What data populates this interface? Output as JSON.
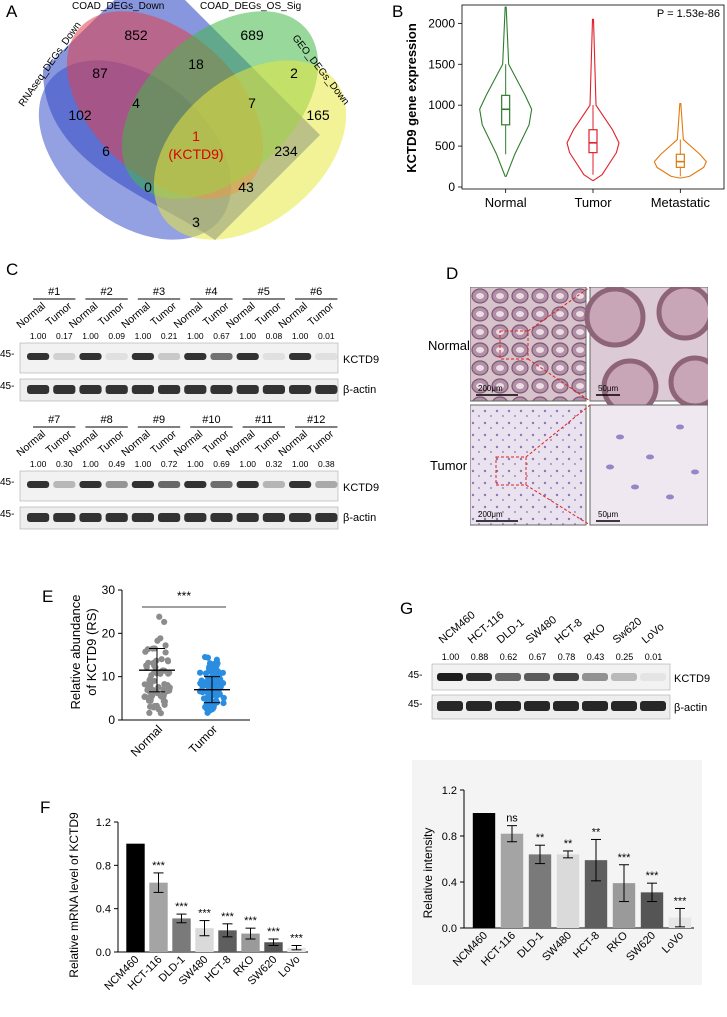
{
  "panels": {
    "A": "A",
    "B": "B",
    "C": "C",
    "D": "D",
    "E": "E",
    "F": "F",
    "G": "G"
  },
  "venn": {
    "set_labels": [
      "RNAseq_DEGs_Down",
      "COAD_DEGs_Down",
      "COAD_DEGs_OS_Sig",
      "GEO_DEGs_Down"
    ],
    "colors": [
      "#3a52c8",
      "#e04048",
      "#44b848",
      "#e8e840"
    ],
    "regions": {
      "only_rnaseq": "102",
      "only_coad": "852",
      "only_os": "689",
      "only_geo": "165",
      "rnaseq_coad": "87",
      "coad_os": "18",
      "os_geo": "2",
      "rnaseq_coad_os": "4",
      "coad_os_geo": "7",
      "rnaseq_os": "6",
      "coad_geo": "234",
      "all_four_count": "1",
      "all_four_gene": "(KCTD9)",
      "rnaseq_os_geo": "0",
      "rnaseq_coad_geo": "43",
      "rnaseq_geo": "3"
    }
  },
  "chart_data": [
    {
      "type": "violin",
      "panel": "B",
      "categories": [
        "Normal",
        "Tumor",
        "Metastatic"
      ],
      "colors": [
        "#2e7d2e",
        "#e0202a",
        "#e07a10"
      ],
      "ylabel": "KCTD9 gene expression",
      "ylim": [
        0,
        2200
      ],
      "yticks": [
        0,
        500,
        1000,
        1500,
        2000
      ],
      "annotation": "P = 1.53e-86",
      "summaries": [
        {
          "min": 130,
          "q1": 760,
          "median": 950,
          "q3": 1120,
          "max": 2200,
          "upper_whisker": 1500,
          "lower_whisker": 400
        },
        {
          "min": 80,
          "q1": 420,
          "median": 540,
          "q3": 700,
          "max": 2050,
          "upper_whisker": 1000,
          "lower_whisker": 150
        },
        {
          "min": 110,
          "q1": 240,
          "median": 310,
          "q3": 400,
          "max": 1020,
          "upper_whisker": 580,
          "lower_whisker": 130
        }
      ]
    },
    {
      "type": "scatter",
      "panel": "E",
      "categories": [
        "Normal",
        "Tumor"
      ],
      "ylabel_lines": [
        "Relative abundance",
        "of KCTD9 (RS)"
      ],
      "ylim": [
        0,
        30
      ],
      "yticks": [
        0,
        10,
        20,
        30
      ],
      "significance": "***",
      "colors": [
        "#8c8c8c",
        "#2a8de0"
      ]
    },
    {
      "type": "bar",
      "panel": "F",
      "categories": [
        "NCM460",
        "HCT-116",
        "DLD-1",
        "SW480",
        "HCT-8",
        "RKO",
        "SW620",
        "LoVo"
      ],
      "values": [
        1.0,
        0.64,
        0.31,
        0.22,
        0.2,
        0.17,
        0.09,
        0.04
      ],
      "errors": [
        0.0,
        0.09,
        0.04,
        0.07,
        0.06,
        0.05,
        0.03,
        0.02
      ],
      "significance": [
        "",
        "***",
        "***",
        "***",
        "***",
        "***",
        "***",
        "***"
      ],
      "ylabel": "Relative mRNA level of KCTD9",
      "ylim": [
        0,
        1.2
      ],
      "yticks": [
        "0.0",
        "0.4",
        "0.8",
        "1.2"
      ]
    },
    {
      "type": "bar",
      "panel": "G",
      "categories": [
        "NCM460",
        "HCT-116",
        "DLD-1",
        "SW480",
        "HCT-8",
        "RKO",
        "SW620",
        "LoVo"
      ],
      "values": [
        1.0,
        0.82,
        0.64,
        0.64,
        0.59,
        0.39,
        0.31,
        0.09
      ],
      "errors": [
        0.0,
        0.07,
        0.08,
        0.03,
        0.18,
        0.16,
        0.08,
        0.08
      ],
      "significance": [
        "",
        "ns",
        "**",
        "**",
        "**",
        "***",
        "***",
        "***"
      ],
      "ylabel": "Relative intensity",
      "ylim": [
        0,
        1.2
      ],
      "yticks": [
        "0.0",
        "0.4",
        "0.8",
        "1.2"
      ]
    }
  ],
  "blot_c": {
    "top": {
      "groups": [
        "#1",
        "#2",
        "#3",
        "#4",
        "#5",
        "#6"
      ],
      "values": [
        "1.00",
        "0.17",
        "1.00",
        "0.09",
        "1.00",
        "0.21",
        "1.00",
        "0.67",
        "1.00",
        "0.08",
        "1.00",
        "0.01"
      ]
    },
    "bottom": {
      "groups": [
        "#7",
        "#8",
        "#9",
        "#10",
        "#11",
        "#12"
      ],
      "values": [
        "1.00",
        "0.30",
        "1.00",
        "0.49",
        "1.00",
        "0.72",
        "1.00",
        "0.69",
        "1.00",
        "0.32",
        "1.00",
        "0.38"
      ]
    },
    "lane_labels": [
      "Normal",
      "Tumor"
    ],
    "marker": "45-",
    "band_kctd9": "KCTD9",
    "band_actin": "β-actin"
  },
  "blot_g": {
    "lanes": [
      "NCM460",
      "HCT-116",
      "DLD-1",
      "SW480",
      "HCT-8",
      "RKO",
      "Sw620",
      "LoVo"
    ],
    "values": [
      "1.00",
      "0.88",
      "0.62",
      "0.67",
      "0.78",
      "0.43",
      "0.25",
      "0.01"
    ],
    "marker": "45-",
    "band_kctd9": "KCTD9",
    "band_actin": "β-actin"
  },
  "ihc": {
    "row_labels": [
      "Normal",
      "Tumor"
    ],
    "scale_low": "200μm",
    "scale_high": "50μm"
  }
}
